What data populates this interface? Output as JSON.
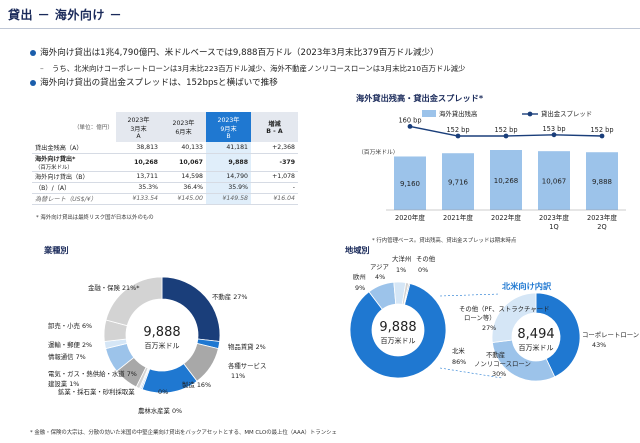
{
  "header": {
    "title": "貸出 － 海外向け －"
  },
  "bullets": [
    {
      "text": "海外向け貸出は1兆4,790億円、米ドルベースでは9,888百万ドル（2023年3月末比379百万ドル減少）"
    },
    {
      "text": "うち、北米向けコーポレートローンは3月末比223百万ドル減少、海外不動産ノンリコースローンは3月末比210百万ドル減少"
    },
    {
      "text": "海外向け貸出の貸出金スプレッドは、152bpsと横ばいで推移"
    }
  ],
  "table": {
    "unit": "（単位：億円）",
    "columns": [
      {
        "line1": "2023年",
        "line2": "3月末",
        "line3": "A"
      },
      {
        "line1": "2023年",
        "line2": "6月末",
        "line3": ""
      },
      {
        "line1": "2023年",
        "line2": "9月末",
        "line3": "B"
      },
      {
        "line1": "増減",
        "line2": "B - A",
        "line3": ""
      }
    ],
    "rows": [
      {
        "label": "貸出金残高（A）",
        "c1": "38,813",
        "c2": "40,133",
        "c3": "41,181",
        "c4": "+2,368"
      },
      {
        "label": "海外向け貸出*",
        "sub": "（百万米ドル）",
        "c1": "10,268",
        "c2": "10,067",
        "c3": "9,888",
        "c4": "-379"
      },
      {
        "label": "海外向け貸出（B）",
        "c1": "13,711",
        "c2": "14,598",
        "c3": "14,790",
        "c4": "+1,078"
      },
      {
        "label": "（B）/（A）",
        "c1": "35.3%",
        "c2": "36.4%",
        "c3": "35.9%",
        "c4": "-"
      },
      {
        "label": "為替レート（US$/¥）",
        "c1": "¥133.54",
        "c2": "¥145.00",
        "c3": "¥149.58",
        "c4": "¥16.04"
      }
    ],
    "footnote": "* 海外向け貸出は最終リスク国が日本以外のもの"
  },
  "bar_title": "海外貸出残高・貸出金スプレッド*",
  "bar_unit": "（百万米ドル）",
  "bar_footnote": "* 行内管理ベース。貸出残高、貸出金スプレッドは期末時点",
  "sector_title": "業種別",
  "region_title": "地域別",
  "na_title": "北米向け内訳",
  "bottom_note": "* 金融・保険の大宗は、分散の効いた米国の中堅企業向け貸出をバックアセットとする、MM CLOの最上位（AAA）トランシェ",
  "colors": {
    "dark": "#1a3e7a",
    "mid": "#1f78d1",
    "light": "#9cc3ea",
    "pale": "#d5e6f6",
    "gray": "#a8a8a8",
    "grayl": "#d3d3d3"
  },
  "chart_data": [
    {
      "type": "bar",
      "title": "海外貸出残高・貸出金スプレッド*",
      "categories": [
        "2020年度",
        "2021年度",
        "2022年度",
        "2023年度 1Q",
        "2023年度 2Q"
      ],
      "series": [
        {
          "name": "海外貸出残高",
          "values": [
            9160,
            9716,
            10268,
            10067,
            9888
          ],
          "labels": [
            "9,160",
            "9,716",
            "10,268",
            "10,067",
            "9,888"
          ]
        },
        {
          "name": "貸出金スプレッド",
          "type": "line",
          "values": [
            160,
            152,
            152,
            153,
            152
          ],
          "labels": [
            "160 bp",
            "152 bp",
            "152 bp",
            "153 bp",
            "152 bp"
          ]
        }
      ],
      "ylabel": "百万米ドル"
    },
    {
      "type": "pie",
      "title": "業種別",
      "center_value": "9,888",
      "center_unit": "百万米ドル",
      "slices": [
        {
          "label": "不動産",
          "pct": 27,
          "display": "不動産 27%"
        },
        {
          "label": "物品賃貸",
          "pct": 2,
          "display": "物品賃貸 2%"
        },
        {
          "label": "各種サービス",
          "pct": 11,
          "display": "各種サービス 11%"
        },
        {
          "label": "製造",
          "pct": 16,
          "display": "製造 16%"
        },
        {
          "label": "農林水産業",
          "pct": 0,
          "display": "農林水産業 0%"
        },
        {
          "label": "鉱業・採石業・砂利採取業",
          "pct": 0,
          "display": "鉱業・採石業・砂利採取業 0%"
        },
        {
          "label": "建設業",
          "pct": 1,
          "display": "建設業 1%"
        },
        {
          "label": "電気・ガス・熱供給・水道",
          "pct": 7,
          "display": "電気・ガス・熱供給・水道 7%"
        },
        {
          "label": "情報通信",
          "pct": 7,
          "display": "情報通信 7%"
        },
        {
          "label": "運輸・郵便",
          "pct": 2,
          "display": "運輸・郵便 2%"
        },
        {
          "label": "卸売・小売",
          "pct": 6,
          "display": "卸売・小売 6%"
        },
        {
          "label": "金融・保険",
          "pct": 21,
          "display": "金融・保険 21%*"
        }
      ]
    },
    {
      "type": "pie",
      "title": "地域別",
      "center_value": "9,888",
      "center_unit": "百万米ドル",
      "slices": [
        {
          "label": "北米",
          "pct": 86,
          "display": "北米 86%"
        },
        {
          "label": "欧州",
          "pct": 9,
          "display": "欧州 9%"
        },
        {
          "label": "アジア",
          "pct": 4,
          "display": "アジア 4%"
        },
        {
          "label": "大洋州",
          "pct": 1,
          "display": "大洋州 1%"
        },
        {
          "label": "その他",
          "pct": 0,
          "display": "その他 0%"
        }
      ]
    },
    {
      "type": "pie",
      "title": "北米向け内訳",
      "center_value": "8,494",
      "center_unit": "百万米ドル",
      "slices": [
        {
          "label": "コーポレートローン",
          "pct": 43,
          "display": "コーポレートローン 43%"
        },
        {
          "label": "不動産ノンリコースローン",
          "pct": 30,
          "display": "不動産ノンリコースローン 30%"
        },
        {
          "label": "その他（PF、ストラクチャードローン等）",
          "pct": 27,
          "display": "その他（PF、ストラクチャードローン等） 27%"
        }
      ]
    }
  ]
}
